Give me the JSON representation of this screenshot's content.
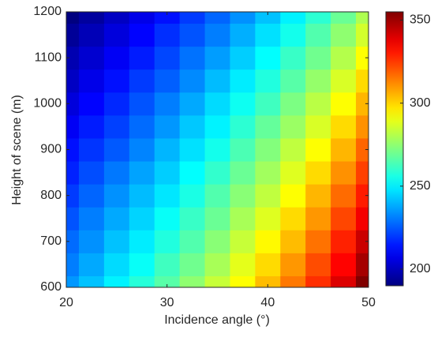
{
  "chart_data": {
    "type": "heatmap",
    "xlabel": "Incidence angle (°)",
    "ylabel": "Height of scene (m)",
    "x": [
      20,
      22.5,
      25,
      27.5,
      30,
      32.5,
      35,
      37.5,
      40,
      42.5,
      45,
      47.5,
      50
    ],
    "y": [
      600,
      650,
      700,
      750,
      800,
      850,
      900,
      950,
      1000,
      1050,
      1100,
      1150,
      1200
    ],
    "z": [
      [
        235,
        242,
        250,
        258,
        266,
        275,
        284,
        293,
        304,
        315,
        327,
        340,
        355
      ],
      [
        231,
        238,
        246,
        253,
        262,
        270,
        279,
        289,
        299,
        310,
        322,
        334,
        349
      ],
      [
        228,
        234,
        242,
        249,
        257,
        265,
        274,
        284,
        294,
        304,
        316,
        329,
        343
      ],
      [
        224,
        231,
        238,
        245,
        253,
        261,
        269,
        279,
        288,
        299,
        310,
        323,
        336
      ],
      [
        220,
        227,
        234,
        241,
        248,
        256,
        265,
        274,
        283,
        293,
        305,
        317,
        330
      ],
      [
        216,
        223,
        230,
        237,
        244,
        252,
        260,
        269,
        278,
        288,
        299,
        311,
        324
      ],
      [
        213,
        219,
        225,
        232,
        240,
        247,
        255,
        264,
        273,
        283,
        293,
        305,
        318
      ],
      [
        209,
        215,
        221,
        228,
        235,
        243,
        250,
        259,
        268,
        277,
        287,
        299,
        311
      ],
      [
        205,
        211,
        217,
        224,
        231,
        238,
        246,
        254,
        262,
        272,
        282,
        293,
        305
      ],
      [
        201,
        207,
        213,
        220,
        226,
        233,
        241,
        249,
        257,
        266,
        276,
        287,
        299
      ],
      [
        198,
        203,
        209,
        215,
        222,
        229,
        236,
        244,
        252,
        261,
        270,
        281,
        293
      ],
      [
        194,
        199,
        205,
        211,
        218,
        224,
        231,
        239,
        247,
        255,
        265,
        275,
        286
      ],
      [
        190,
        195,
        201,
        207,
        213,
        220,
        227,
        234,
        242,
        250,
        259,
        269,
        280
      ]
    ],
    "xlim": [
      20,
      50
    ],
    "xticks": [
      20,
      30,
      40,
      50
    ],
    "ylim": [
      600,
      1200
    ],
    "yticks": [
      600,
      700,
      800,
      900,
      1000,
      1100,
      1200
    ],
    "colormap": "jet",
    "clim": [
      190,
      355
    ],
    "cticks": [
      200,
      250,
      300,
      350
    ]
  }
}
